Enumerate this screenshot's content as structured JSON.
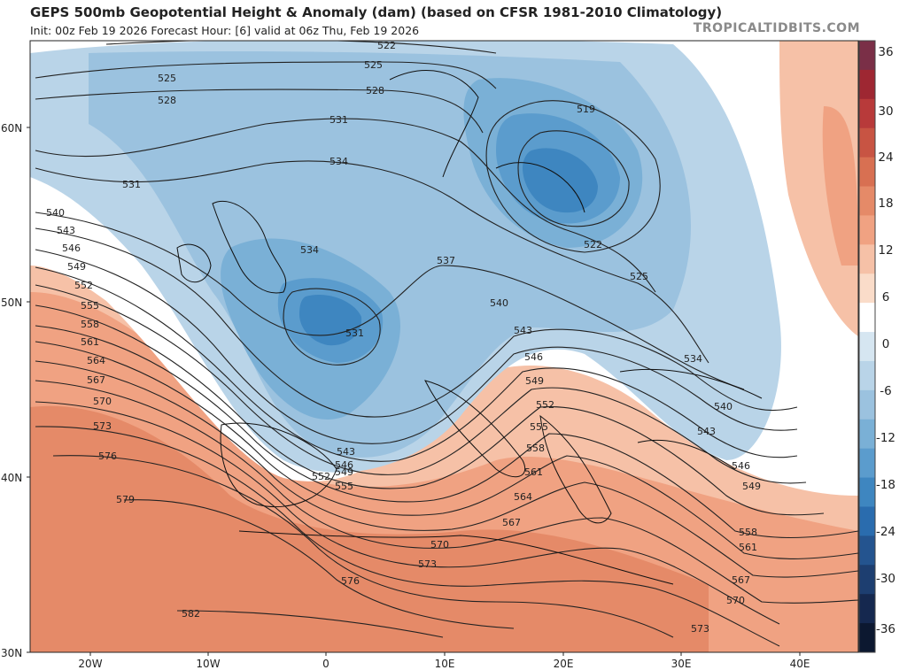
{
  "header": {
    "title": "GEPS 500mb Geopotential Height & Anomaly (dam) (based on CFSR 1981-2010 Climatology)",
    "subtitle": "Init: 00z Feb 19 2026   Forecast Hour: [6]   valid at 06z Thu, Feb 19 2026",
    "credit": "TROPICALTIDBITS.COM"
  },
  "axes": {
    "lat_labels": [
      "60N",
      "50N",
      "40N",
      "30N"
    ],
    "lon_labels": [
      "20W",
      "10W",
      "0",
      "10E",
      "20E",
      "30E",
      "40E"
    ]
  },
  "colorbar": {
    "ticks": [
      "36",
      "30",
      "24",
      "18",
      "12",
      "6",
      "0",
      "-6",
      "-12",
      "-18",
      "-24",
      "-30",
      "-36"
    ],
    "colors": [
      "#7a2f47",
      "#9e2732",
      "#b83a3a",
      "#c85443",
      "#d87052",
      "#e58a68",
      "#f0a282",
      "#f6c1a7",
      "#fadcc9",
      "#ffffff",
      "#d6e6f1",
      "#b9d4e8",
      "#9bc2df",
      "#7ab0d6",
      "#5b9ccd",
      "#3e86c0",
      "#2a6cae",
      "#24548f",
      "#1d3e70",
      "#15284f",
      "#0c1830"
    ]
  },
  "contours": {
    "labels": [
      "522",
      "525",
      "528",
      "531",
      "534",
      "537",
      "540",
      "543",
      "546",
      "549",
      "552",
      "555",
      "558",
      "561",
      "564",
      "567",
      "570",
      "573",
      "576",
      "579",
      "582",
      "519"
    ]
  }
}
